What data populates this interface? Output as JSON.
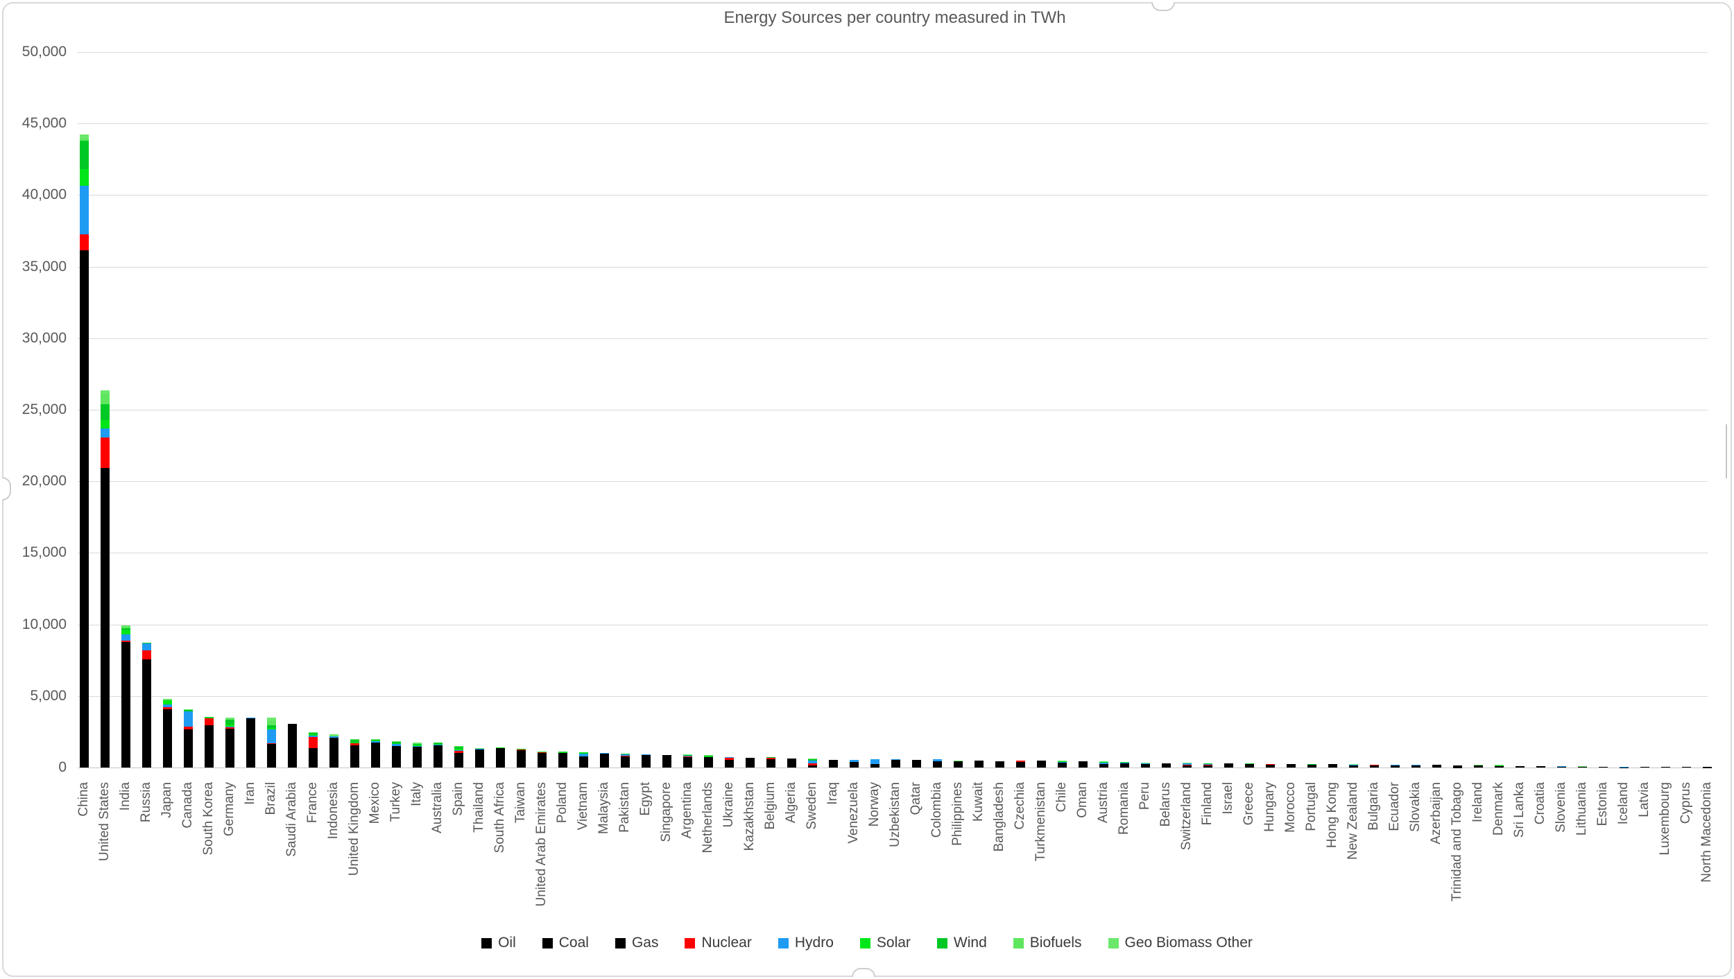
{
  "title": "Energy Sources per country measured in TWh",
  "y_axis": {
    "min": 0,
    "max": 50000,
    "step": 5000,
    "tick_labels": [
      "0",
      "5,000",
      "10,000",
      "15,000",
      "20,000",
      "25,000",
      "30,000",
      "35,000",
      "40,000",
      "45,000",
      "50,000"
    ]
  },
  "legend": [
    {
      "label": "Oil",
      "color": "#000000"
    },
    {
      "label": "Coal",
      "color": "#000000"
    },
    {
      "label": "Gas",
      "color": "#000000"
    },
    {
      "label": "Nuclear",
      "color": "#FE0000"
    },
    {
      "label": "Hydro",
      "color": "#1F9BF2"
    },
    {
      "label": "Solar",
      "color": "#00E619"
    },
    {
      "label": "Wind",
      "color": "#00C926"
    },
    {
      "label": "Biofuels",
      "color": "#5FE65F"
    },
    {
      "label": "Geo Biomass Other",
      "color": "#6BE86B"
    }
  ],
  "chart_data": {
    "type": "bar",
    "stacked": true,
    "title": "Energy Sources per country measured in TWh",
    "xlabel": "",
    "ylabel": "",
    "ylim": [
      0,
      50000
    ],
    "grid": true,
    "legend_position": "bottom",
    "unit": "TWh",
    "colors": {
      "Oil": "#000000",
      "Coal": "#000000",
      "Gas": "#000000",
      "Nuclear": "#FE0000",
      "Hydro": "#1F9BF2",
      "Solar": "#00E619",
      "Wind": "#00C926",
      "Biofuels": "#5FE65F",
      "Geo Biomass Other": "#6BE86B"
    },
    "categories": [
      "China",
      "United States",
      "India",
      "Russia",
      "Japan",
      "Canada",
      "South Korea",
      "Germany",
      "Iran",
      "Brazil",
      "Saudi Arabia",
      "France",
      "Indonesia",
      "United Kingdom",
      "Mexico",
      "Turkey",
      "Italy",
      "Australia",
      "Spain",
      "Thailand",
      "South Africa",
      "Taiwan",
      "United Arab Emirates",
      "Poland",
      "Vietnam",
      "Malaysia",
      "Pakistan",
      "Egypt",
      "Singapore",
      "Argentina",
      "Netherlands",
      "Ukraine",
      "Kazakhstan",
      "Belgium",
      "Algeria",
      "Sweden",
      "Iraq",
      "Venezuela",
      "Norway",
      "Uzbekistan",
      "Qatar",
      "Colombia",
      "Philippines",
      "Kuwait",
      "Bangladesh",
      "Czechia",
      "Turkmenistan",
      "Chile",
      "Oman",
      "Austria",
      "Romania",
      "Peru",
      "Belarus",
      "Switzerland",
      "Finland",
      "Israel",
      "Greece",
      "Hungary",
      "Morocco",
      "Portugal",
      "Hong Kong",
      "New Zealand",
      "Bulgaria",
      "Ecuador",
      "Slovakia",
      "Azerbaijan",
      "Trinidad and Tobago",
      "Ireland",
      "Denmark",
      "Sri Lanka",
      "Croatia",
      "Slovenia",
      "Lithuania",
      "Estonia",
      "Iceland",
      "Latvia",
      "Luxembourg",
      "Cyprus",
      "North Macedonia"
    ],
    "series": [
      {
        "name": "Oil",
        "values": [
          7820,
          9460,
          2600,
          2200,
          1720,
          1270,
          1470,
          1100,
          1110,
          1150,
          2280,
          880,
          850,
          760,
          900,
          540,
          750,
          630,
          650,
          620,
          320,
          480,
          520,
          360,
          290,
          420,
          260,
          390,
          750,
          310,
          380,
          120,
          170,
          350,
          210,
          120,
          440,
          290,
          180,
          80,
          110,
          250,
          230,
          310,
          130,
          190,
          90,
          180,
          180,
          150,
          130,
          140,
          80,
          120,
          90,
          120,
          150,
          90,
          160,
          120,
          160,
          90,
          60,
          130,
          60,
          50,
          15,
          80,
          70,
          60,
          55,
          30,
          45,
          25,
          18,
          25,
          25,
          28,
          20
        ]
      },
      {
        "name": "Coal",
        "values": [
          24560,
          2680,
          5580,
          1180,
          1370,
          130,
          870,
          820,
          30,
          150,
          5,
          70,
          850,
          60,
          120,
          450,
          100,
          510,
          50,
          200,
          980,
          430,
          30,
          470,
          430,
          260,
          170,
          25,
          2,
          15,
          70,
          150,
          320,
          30,
          5,
          20,
          0,
          1,
          15,
          40,
          0,
          55,
          140,
          1,
          40,
          130,
          0,
          90,
          2,
          30,
          40,
          10,
          10,
          1,
          30,
          40,
          30,
          20,
          60,
          2,
          60,
          15,
          60,
          0,
          15,
          0,
          0,
          10,
          15,
          25,
          5,
          10,
          2,
          20,
          2,
          1,
          1,
          0,
          8
        ]
      },
      {
        "name": "Gas",
        "values": [
          3760,
          8770,
          570,
          4200,
          990,
          1240,
          620,
          790,
          2300,
          330,
          750,
          390,
          400,
          720,
          700,
          490,
          580,
          400,
          300,
          450,
          40,
          280,
          480,
          180,
          75,
          270,
          350,
          460,
          120,
          410,
          260,
          250,
          170,
          180,
          420,
          10,
          110,
          95,
          30,
          430,
          400,
          110,
          40,
          150,
          280,
          80,
          380,
          60,
          250,
          80,
          110,
          80,
          180,
          30,
          20,
          110,
          60,
          90,
          10,
          50,
          30,
          40,
          25,
          5,
          45,
          130,
          150,
          45,
          20,
          0,
          25,
          10,
          15,
          5,
          0,
          10,
          8,
          0,
          3
        ]
      },
      {
        "name": "Nuclear",
        "values": [
          1110,
          2130,
          120,
          590,
          140,
          230,
          460,
          90,
          15,
          40,
          0,
          780,
          0,
          130,
          30,
          0,
          0,
          0,
          150,
          0,
          30,
          60,
          50,
          0,
          0,
          0,
          60,
          0,
          0,
          20,
          10,
          165,
          0,
          115,
          0,
          135,
          0,
          0,
          0,
          0,
          0,
          0,
          0,
          0,
          0,
          80,
          0,
          0,
          0,
          0,
          30,
          0,
          28,
          60,
          63,
          0,
          0,
          42,
          0,
          0,
          0,
          0,
          42,
          0,
          40,
          0,
          0,
          0,
          0,
          0,
          0,
          15,
          0,
          0,
          0,
          0,
          0,
          0,
          0
        ]
      },
      {
        "name": "Hydro",
        "values": [
          3400,
          670,
          450,
          520,
          200,
          1050,
          10,
          45,
          40,
          1000,
          0,
          130,
          65,
          15,
          90,
          175,
          75,
          45,
          50,
          15,
          2,
          8,
          0,
          8,
          185,
          85,
          95,
          35,
          0,
          75,
          0,
          30,
          25,
          1,
          0,
          180,
          5,
          125,
          340,
          17,
          0,
          155,
          25,
          0,
          3,
          5,
          0,
          50,
          0,
          100,
          45,
          80,
          1,
          90,
          35,
          0,
          10,
          1,
          2,
          20,
          0,
          60,
          12,
          65,
          12,
          5,
          0,
          2,
          0,
          15,
          15,
          12,
          2,
          0,
          25,
          7,
          1,
          0,
          3
        ]
      },
      {
        "name": "Solar",
        "values": [
          1140,
          540,
          250,
          5,
          270,
          15,
          75,
          155,
          5,
          80,
          5,
          55,
          1,
          35,
          50,
          40,
          70,
          85,
          105,
          15,
          15,
          30,
          40,
          30,
          65,
          5,
          5,
          12,
          2,
          5,
          45,
          15,
          5,
          18,
          2,
          5,
          1,
          0,
          0,
          1,
          2,
          2,
          5,
          1,
          2,
          6,
          0,
          45,
          3,
          10,
          8,
          2,
          1,
          8,
          2,
          10,
          15,
          10,
          3,
          15,
          0,
          1,
          8,
          0,
          2,
          0,
          0,
          0,
          5,
          2,
          1,
          2,
          1,
          2,
          0,
          0,
          1,
          2,
          1
        ]
      },
      {
        "name": "Wind",
        "values": [
          2030,
          1150,
          190,
          10,
          25,
          100,
          10,
          325,
          1,
          215,
          1,
          100,
          1,
          210,
          55,
          90,
          55,
          70,
          160,
          5,
          25,
          10,
          0,
          50,
          25,
          0,
          5,
          13,
          0,
          35,
          55,
          8,
          5,
          30,
          0,
          90,
          0,
          0,
          30,
          1,
          0,
          1,
          3,
          0,
          0,
          1,
          0,
          25,
          0,
          18,
          18,
          2,
          1,
          1,
          30,
          1,
          28,
          2,
          15,
          35,
          0,
          8,
          4,
          0,
          0,
          0,
          0,
          30,
          45,
          2,
          5,
          0,
          5,
          3,
          0,
          1,
          1,
          1,
          0
        ]
      },
      {
        "name": "Biofuels",
        "values": [
          120,
          700,
          120,
          0,
          10,
          20,
          20,
          40,
          0,
          350,
          0,
          40,
          60,
          40,
          0,
          0,
          40,
          5,
          30,
          50,
          0,
          0,
          0,
          25,
          0,
          0,
          0,
          0,
          0,
          25,
          20,
          0,
          0,
          15,
          0,
          40,
          0,
          0,
          5,
          0,
          0,
          10,
          5,
          0,
          0,
          10,
          0,
          10,
          0,
          20,
          0,
          0,
          0,
          5,
          15,
          0,
          5,
          5,
          0,
          15,
          0,
          0,
          2,
          2,
          3,
          0,
          0,
          3,
          12,
          0,
          2,
          1,
          3,
          2,
          0,
          2,
          1,
          1,
          0
        ]
      },
      {
        "name": "Geo Biomass Other",
        "values": [
          300,
          250,
          60,
          10,
          60,
          10,
          5,
          120,
          0,
          150,
          0,
          50,
          80,
          40,
          20,
          55,
          55,
          5,
          10,
          10,
          1,
          2,
          0,
          10,
          2,
          1,
          1,
          0,
          1,
          2,
          10,
          2,
          0,
          5,
          0,
          15,
          0,
          0,
          0,
          0,
          0,
          2,
          55,
          0,
          0,
          5,
          0,
          5,
          0,
          10,
          2,
          1,
          2,
          5,
          15,
          0,
          1,
          3,
          0,
          5,
          0,
          50,
          1,
          0,
          2,
          0,
          0,
          1,
          5,
          1,
          2,
          1,
          2,
          3,
          14,
          2,
          0,
          0,
          0
        ]
      }
    ]
  }
}
